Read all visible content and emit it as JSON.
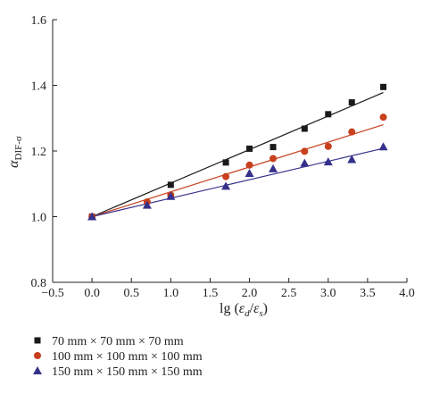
{
  "chart_data": {
    "type": "scatter",
    "title": "",
    "xlabel": "lg (εd/εs)",
    "xlabel_parts": {
      "prefix": "lg (",
      "eps1": "ε",
      "sub1": "d",
      "slash": "/",
      "eps2": "ε",
      "sub2": "s",
      "suffix": ")"
    },
    "ylabel": "αDIF-σ",
    "ylabel_parts": {
      "main": "α",
      "sub": "DIF-σ"
    },
    "xlim": [
      -0.5,
      4.0
    ],
    "ylim": [
      0.8,
      1.6
    ],
    "xticks": [
      "−0.5",
      "0.0",
      "0.5",
      "1.0",
      "1.5",
      "2.0",
      "2.5",
      "3.0",
      "3.5",
      "4.0"
    ],
    "yticks": [
      "0.8",
      "1.0",
      "1.2",
      "1.4",
      "1.6"
    ],
    "grid": false,
    "legend_position": "bottom-left",
    "series": [
      {
        "name": "70 mm × 70 mm × 70 mm",
        "marker": "square",
        "color": "#1a1a1a",
        "x": [
          0,
          1.0,
          1.7,
          2.0,
          2.3,
          2.7,
          3.0,
          3.3,
          3.7
        ],
        "y": [
          1.0,
          1.097,
          1.165,
          1.207,
          1.212,
          1.268,
          1.312,
          1.348,
          1.395
        ],
        "fit": {
          "x": [
            0,
            3.7
          ],
          "y": [
            1.0,
            1.378
          ]
        }
      },
      {
        "name": "100 mm × 100 mm × 100 mm",
        "marker": "circle",
        "color": "#c8401e",
        "x": [
          0,
          0.7,
          1.0,
          1.7,
          2.0,
          2.3,
          2.7,
          3.0,
          3.3,
          3.7
        ],
        "y": [
          1.0,
          1.045,
          1.066,
          1.122,
          1.157,
          1.177,
          1.199,
          1.214,
          1.258,
          1.303
        ],
        "fit": {
          "x": [
            0,
            3.7
          ],
          "y": [
            1.0,
            1.28
          ]
        }
      },
      {
        "name": "150 mm × 150 mm × 150 mm",
        "marker": "triangle",
        "color": "#35308a",
        "x": [
          0,
          0.7,
          1.0,
          1.7,
          2.0,
          2.3,
          2.7,
          3.0,
          3.3,
          3.7
        ],
        "y": [
          1.0,
          1.035,
          1.062,
          1.093,
          1.132,
          1.146,
          1.163,
          1.167,
          1.174,
          1.213
        ],
        "fit": {
          "x": [
            0,
            3.7
          ],
          "y": [
            1.0,
            1.208
          ]
        }
      }
    ]
  }
}
